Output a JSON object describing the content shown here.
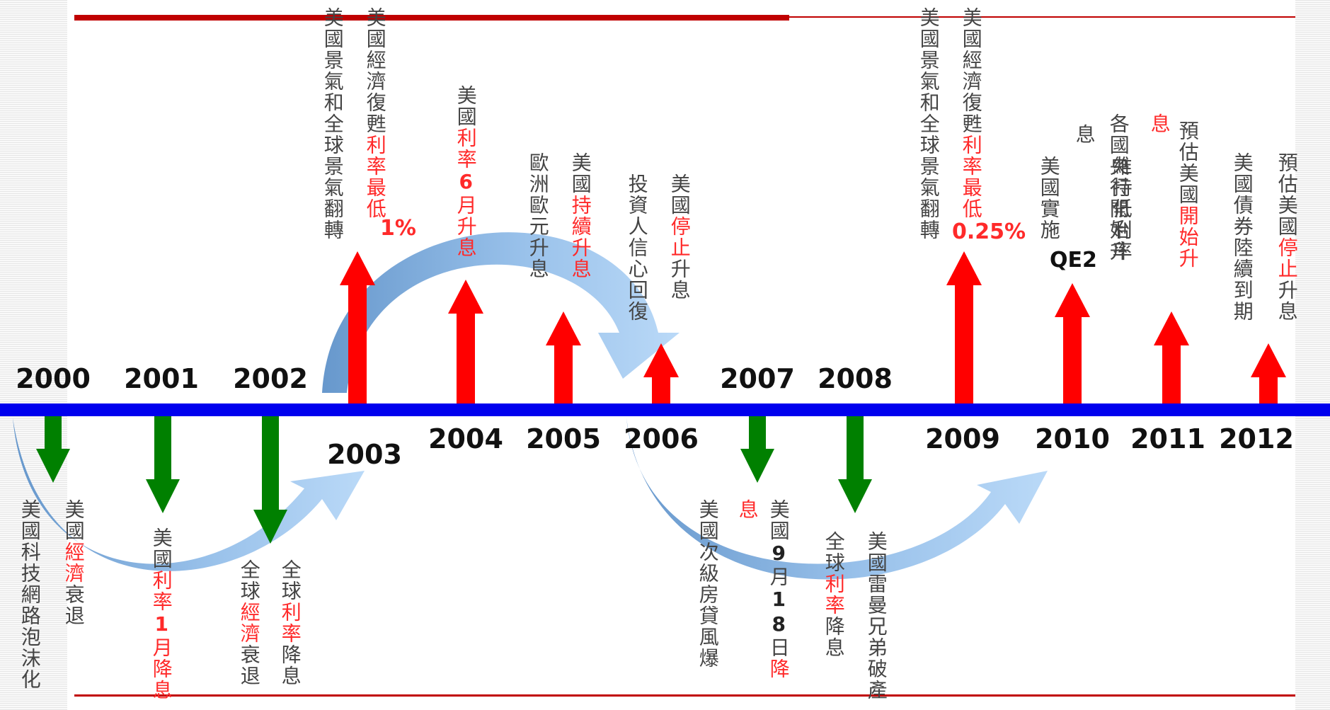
{
  "colors": {
    "up_arrow": "#ff0000",
    "down_arrow": "#008000",
    "axis": "#0000ee",
    "rule": "#c00000",
    "highlight_text": "#ff2a2a"
  },
  "years": [
    "2000",
    "2001",
    "2002",
    "2003",
    "2004",
    "2005",
    "2006",
    "2007",
    "2008",
    "2009",
    "2010",
    "2011",
    "2012"
  ],
  "up_events": [
    {
      "year": "2003",
      "lines": [
        {
          "parts": [
            {
              "t": "美國景氣和全球景氣翻轉",
              "s": "n"
            }
          ]
        },
        {
          "parts": [
            {
              "t": "美國經濟復甦",
              "s": "n"
            },
            {
              "t": "利率最低",
              "s": "h"
            }
          ]
        }
      ],
      "extra": "1%"
    },
    {
      "year": "2004",
      "lines": [
        {
          "parts": [
            {
              "t": "美國",
              "s": "n"
            },
            {
              "t": "利率",
              "s": "h"
            },
            {
              "t": "6",
              "s": "hb"
            },
            {
              "t": "月升息",
              "s": "h"
            }
          ]
        }
      ]
    },
    {
      "year": "2005",
      "lines": [
        {
          "parts": [
            {
              "t": "歐洲歐元升息",
              "s": "n"
            }
          ]
        },
        {
          "parts": [
            {
              "t": "美國",
              "s": "n"
            },
            {
              "t": "持續升息",
              "s": "h"
            }
          ]
        }
      ]
    },
    {
      "year": "2006",
      "lines": [
        {
          "parts": [
            {
              "t": "投資人信心回復",
              "s": "n"
            }
          ]
        },
        {
          "parts": [
            {
              "t": "美國",
              "s": "n"
            },
            {
              "t": "停止",
              "s": "h"
            },
            {
              "t": "升息",
              "s": "n"
            }
          ]
        }
      ]
    },
    {
      "year": "2009",
      "lines": [
        {
          "parts": [
            {
              "t": "美國景氣和全球景氣翻轉",
              "s": "n"
            }
          ]
        },
        {
          "parts": [
            {
              "t": "美國經濟復甦",
              "s": "n"
            },
            {
              "t": "利率最低",
              "s": "h"
            }
          ]
        }
      ],
      "extra": "0.25%"
    },
    {
      "year": "2010",
      "lines": [
        {
          "parts": [
            {
              "t": "美國實施",
              "s": "n"
            }
          ]
        },
        {
          "parts": [
            {
              "t": "息",
              "s": "n"
            }
          ]
        },
        {
          "parts": [
            {
              "t": "維持低利率",
              "s": "n"
            }
          ]
        },
        {
          "parts": [
            {
              "t": "各國央行開始升",
              "s": "n"
            }
          ]
        }
      ],
      "extra": "QE2"
    },
    {
      "year": "2011",
      "lines": [
        {
          "parts": [
            {
              "t": "息",
              "s": "h"
            }
          ]
        },
        {
          "parts": [
            {
              "t": "預估美國",
              "s": "n"
            },
            {
              "t": "開始升",
              "s": "h"
            }
          ]
        }
      ]
    },
    {
      "year": "2012",
      "lines": [
        {
          "parts": [
            {
              "t": "美國債券陸續到期",
              "s": "n"
            }
          ]
        },
        {
          "parts": [
            {
              "t": "預估美國",
              "s": "n"
            },
            {
              "t": "停止",
              "s": "h"
            },
            {
              "t": "升息",
              "s": "n"
            }
          ]
        }
      ]
    }
  ],
  "down_events": [
    {
      "year": "2000",
      "lines": [
        {
          "parts": [
            {
              "t": "美國科技網路泡沫化",
              "s": "n"
            }
          ]
        },
        {
          "parts": [
            {
              "t": "美國",
              "s": "n"
            },
            {
              "t": "經濟",
              "s": "h"
            },
            {
              "t": "衰退",
              "s": "n"
            }
          ]
        }
      ]
    },
    {
      "year": "2001",
      "lines": [
        {
          "parts": [
            {
              "t": "美國",
              "s": "n"
            },
            {
              "t": "利率",
              "s": "h"
            },
            {
              "t": "1",
              "s": "hb"
            },
            {
              "t": "月降息",
              "s": "h"
            }
          ]
        }
      ]
    },
    {
      "year": "2002",
      "lines": [
        {
          "parts": [
            {
              "t": "全球",
              "s": "n"
            },
            {
              "t": "經濟",
              "s": "h"
            },
            {
              "t": "衰退",
              "s": "n"
            }
          ]
        },
        {
          "parts": [
            {
              "t": "全球",
              "s": "n"
            },
            {
              "t": "利率",
              "s": "h"
            },
            {
              "t": "降息",
              "s": "n"
            }
          ]
        }
      ]
    },
    {
      "year": "2007",
      "lines": [
        {
          "parts": [
            {
              "t": "美國次級房貸風爆",
              "s": "n"
            }
          ]
        },
        {
          "parts": [
            {
              "t": "息",
              "s": "h"
            }
          ]
        },
        {
          "parts": [
            {
              "t": "美國",
              "s": "n"
            },
            {
              "t": "9",
              "s": "b"
            },
            {
              "t": "月",
              "s": "n"
            },
            {
              "t": "18",
              "s": "b"
            },
            {
              "t": "日",
              "s": "n"
            },
            {
              "t": "降",
              "s": "h"
            }
          ]
        }
      ]
    },
    {
      "year": "2008",
      "lines": [
        {
          "parts": [
            {
              "t": "全球",
              "s": "n"
            },
            {
              "t": "利率",
              "s": "h"
            },
            {
              "t": "降息",
              "s": "n"
            }
          ]
        },
        {
          "parts": [
            {
              "t": "美國雷曼兄弟破產",
              "s": "n"
            }
          ]
        }
      ]
    }
  ]
}
